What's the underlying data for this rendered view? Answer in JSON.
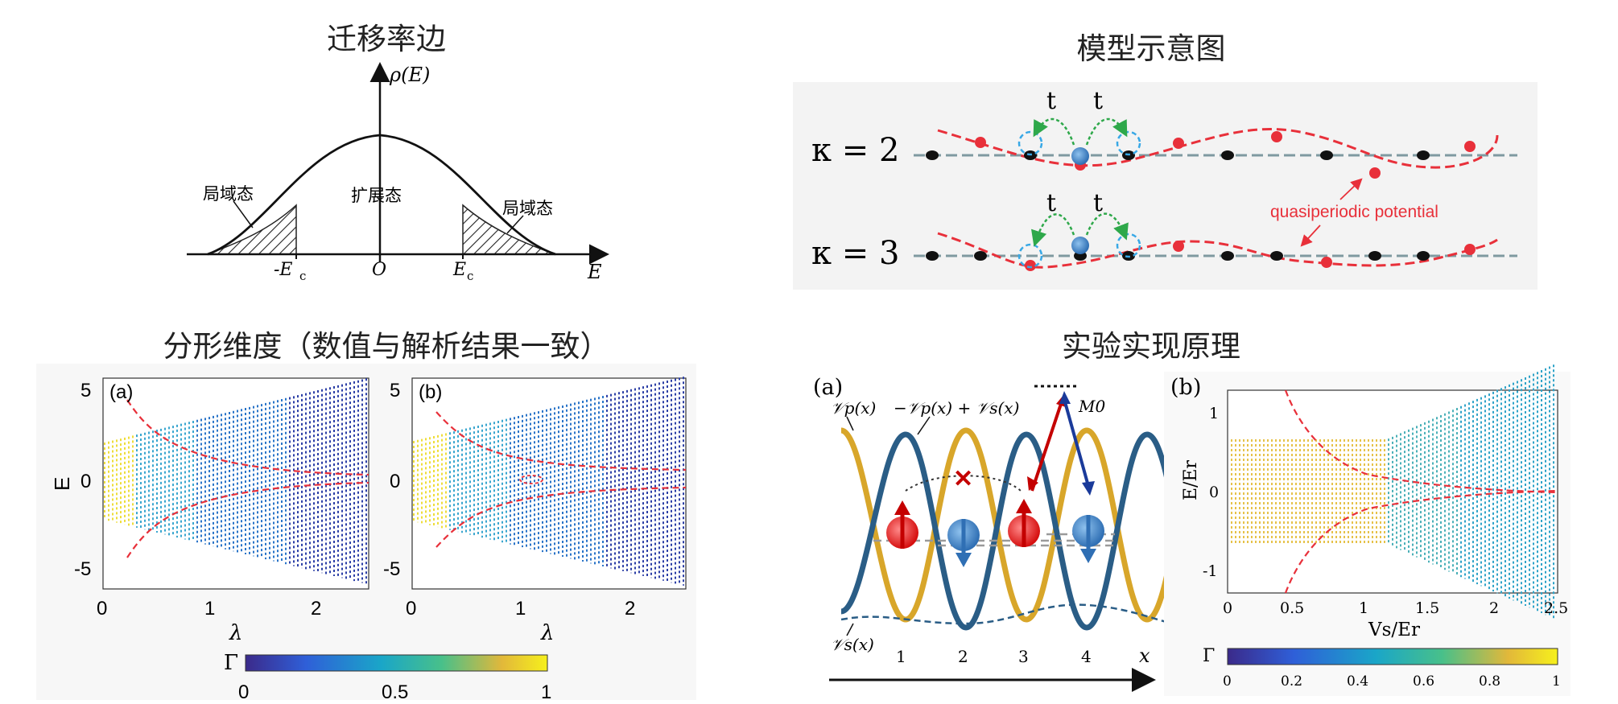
{
  "titles": {
    "mobility_edge": "迁移率边",
    "model": "模型示意图",
    "fractal": "分形维度（数值与解析结果一致）",
    "experiment": "实验实现原理"
  },
  "mobility_edge": {
    "y_label": "ρ(E)",
    "x_label": "E",
    "origin": "O",
    "left_edge": "-E",
    "right_edge": "E",
    "edge_sub": "c",
    "left_state": "局域态",
    "center_state": "扩展态",
    "right_state": "局域态"
  },
  "model": {
    "rows": [
      {
        "kappa": "κ = 2",
        "hop1": "t",
        "hop2": "t"
      },
      {
        "kappa": "κ = 3",
        "hop1": "t",
        "hop2": "t"
      }
    ],
    "potential_label": "quasiperiodic potential",
    "colors": {
      "potential": "#e8303a",
      "lattice": "#7f9aa0",
      "atom": "#2f6fb4",
      "hop": "#2ea84a",
      "ring": "#38a8e6"
    }
  },
  "fractal": {
    "panels": [
      {
        "tag": "(a)",
        "xlabel": "λ",
        "ylabel": "E",
        "yticks": [
          "5",
          "0",
          "-5"
        ],
        "xticks": [
          "0",
          "1",
          "2"
        ]
      },
      {
        "tag": "(b)",
        "xlabel": "λ",
        "ylabel": "",
        "yticks": [
          "5",
          "0",
          "-5"
        ],
        "xticks": [
          "0",
          "1",
          "2"
        ]
      }
    ],
    "colorbar": {
      "label": "Γ",
      "ticks": [
        "0",
        "0.5",
        "1"
      ]
    }
  },
  "experiment": {
    "panel_a": {
      "tag": "(a)",
      "vp": "𝒱p(x)",
      "combo": "−𝒱p(x) + 𝒱s(x)",
      "vs": "𝒱s(x)",
      "m0": "M0",
      "sites": [
        "1",
        "2",
        "3",
        "4"
      ],
      "x_axis": "x"
    },
    "panel_b": {
      "tag": "(b)",
      "ylabel": "E/Er",
      "xlabel": "Vs/Er",
      "yticks": [
        "1",
        "0",
        "-1"
      ],
      "xticks": [
        "0",
        "0.5",
        "1",
        "1.5",
        "2",
        "2.5"
      ],
      "colorbar_label": "Γ",
      "colorbar_ticks": [
        "0",
        "0.2",
        "0.4",
        "0.6",
        "0.8",
        "1"
      ]
    }
  }
}
